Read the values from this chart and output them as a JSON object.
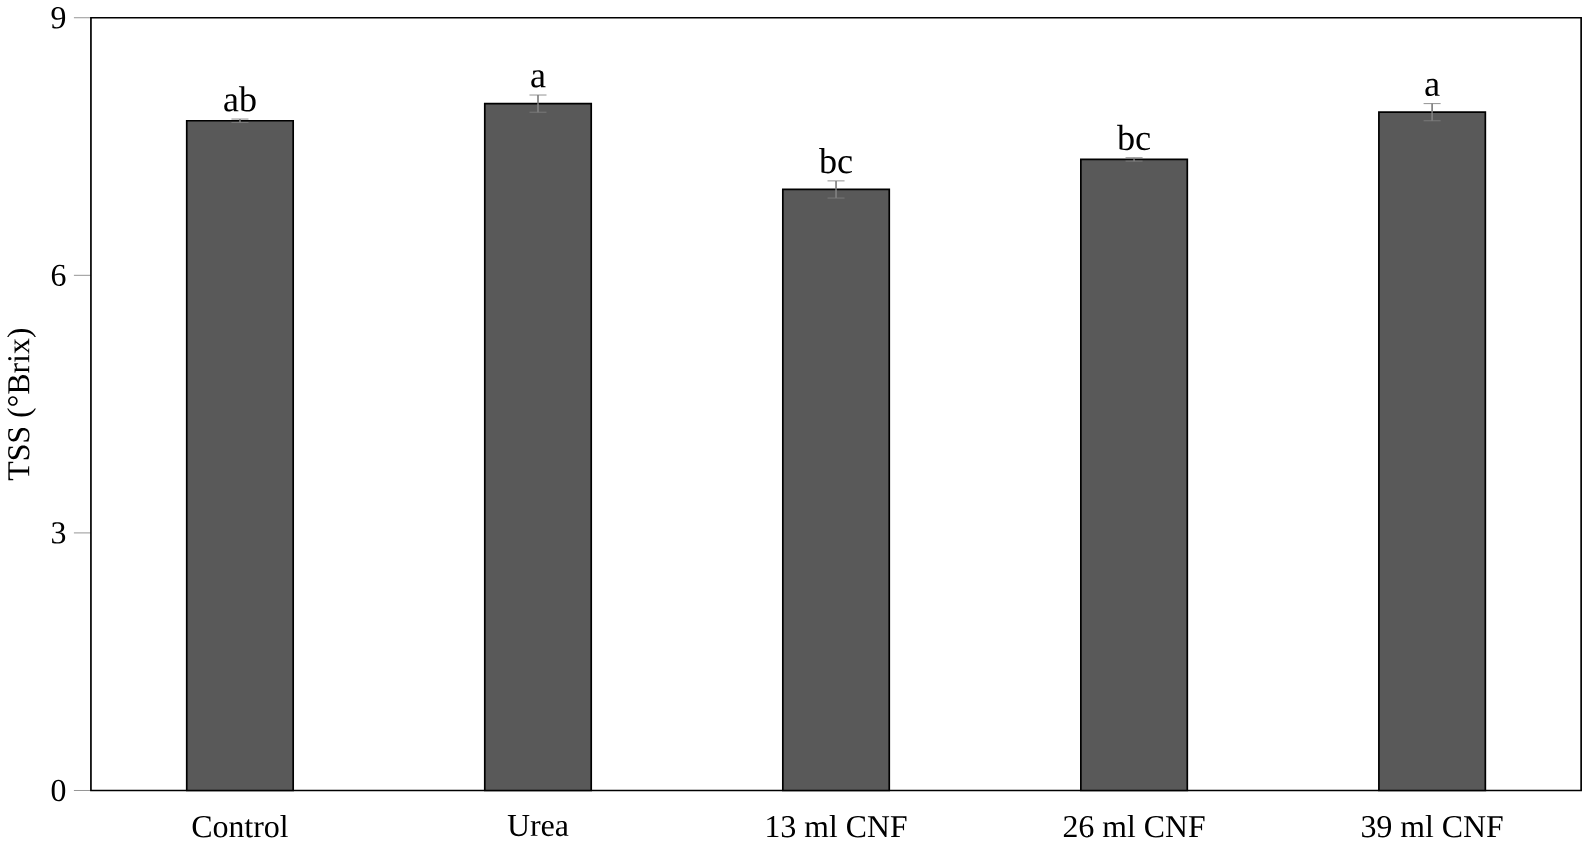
{
  "chart_data": {
    "type": "bar",
    "ylabel": "TSS (°Brix)",
    "categories": [
      "Control",
      "Urea",
      "13 ml CNF",
      "26 ml CNF",
      "39 ml CNF"
    ],
    "values": [
      7.8,
      8.0,
      7.0,
      7.35,
      7.9
    ],
    "errors": [
      0.02,
      0.1,
      0.1,
      0.02,
      0.1
    ],
    "color": "#595959",
    "ylim": [
      0,
      9
    ],
    "yticks": [
      0,
      3,
      6,
      9
    ],
    "grid": false,
    "annotations": [
      {
        "text": "ab",
        "x": "Control",
        "y": 7.82
      },
      {
        "text": "a",
        "x": "Urea",
        "y": 8.1
      },
      {
        "text": "bc",
        "x": "13 ml CNF",
        "y": 7.1
      },
      {
        "text": "bc",
        "x": "26 ml CNF",
        "y": 7.37
      },
      {
        "text": "a",
        "x": "39 ml CNF",
        "y": 8.0
      }
    ]
  }
}
